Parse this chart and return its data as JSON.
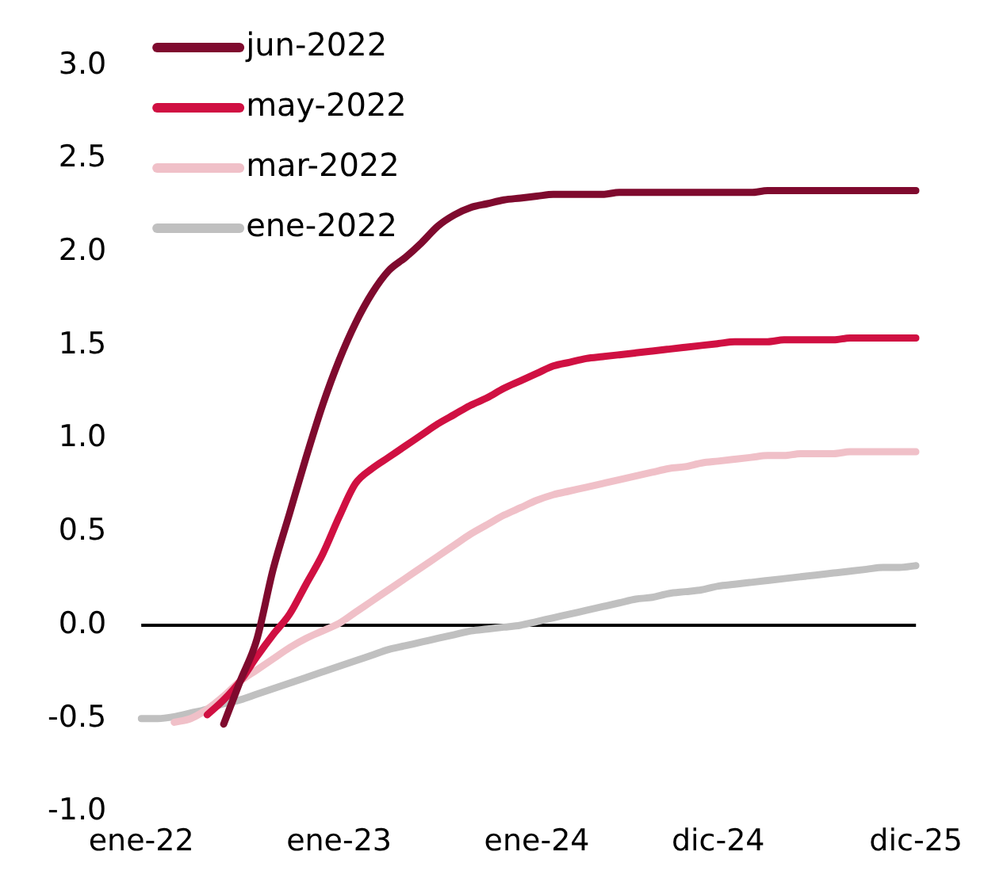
{
  "chart_data": {
    "type": "line",
    "categories": [
      "ene-22",
      null,
      null,
      null,
      null,
      null,
      null,
      null,
      null,
      null,
      null,
      null,
      "ene-23",
      null,
      null,
      null,
      null,
      null,
      null,
      null,
      null,
      null,
      null,
      null,
      "ene-24",
      null,
      null,
      null,
      null,
      null,
      null,
      null,
      null,
      null,
      null,
      "dic-24",
      null,
      null,
      null,
      null,
      null,
      null,
      null,
      null,
      null,
      null,
      null,
      "dic-25"
    ],
    "series": [
      {
        "name": "jun-2022",
        "color": "#7f0a2e",
        "values": [
          null,
          null,
          null,
          null,
          null,
          -0.53,
          -0.3,
          -0.08,
          0.3,
          0.6,
          0.9,
          1.18,
          1.42,
          1.62,
          1.78,
          1.9,
          1.97,
          2.05,
          2.14,
          2.2,
          2.24,
          2.26,
          2.28,
          2.29,
          2.3,
          2.31,
          2.31,
          2.31,
          2.31,
          2.32,
          2.32,
          2.32,
          2.32,
          2.32,
          2.32,
          2.32,
          2.32,
          2.32,
          2.33,
          2.33,
          2.33,
          2.33,
          2.33,
          2.33,
          2.33,
          2.33,
          2.33,
          2.33
        ]
      },
      {
        "name": "may-2022",
        "color": "#d01042",
        "values": [
          null,
          null,
          null,
          null,
          -0.48,
          -0.4,
          -0.3,
          -0.17,
          -0.05,
          0.06,
          0.22,
          0.38,
          0.58,
          0.76,
          0.84,
          0.9,
          0.96,
          1.02,
          1.08,
          1.13,
          1.18,
          1.22,
          1.27,
          1.31,
          1.35,
          1.39,
          1.41,
          1.43,
          1.44,
          1.45,
          1.46,
          1.47,
          1.48,
          1.49,
          1.5,
          1.51,
          1.52,
          1.52,
          1.52,
          1.53,
          1.53,
          1.53,
          1.53,
          1.54,
          1.54,
          1.54,
          1.54,
          1.54
        ]
      },
      {
        "name": "mar-2022",
        "color": "#f0c0c8",
        "values": [
          null,
          null,
          -0.52,
          -0.5,
          -0.45,
          -0.38,
          -0.3,
          -0.24,
          -0.18,
          -0.12,
          -0.07,
          -0.03,
          0.01,
          0.07,
          0.13,
          0.19,
          0.25,
          0.31,
          0.37,
          0.43,
          0.49,
          0.54,
          0.59,
          0.63,
          0.67,
          0.7,
          0.72,
          0.74,
          0.76,
          0.78,
          0.8,
          0.82,
          0.84,
          0.85,
          0.87,
          0.88,
          0.89,
          0.9,
          0.91,
          0.91,
          0.92,
          0.92,
          0.92,
          0.93,
          0.93,
          0.93,
          0.93,
          0.93
        ]
      },
      {
        "name": "ene-2022",
        "color": "#c0c0c0",
        "values": [
          -0.5,
          -0.5,
          -0.49,
          -0.47,
          -0.45,
          -0.42,
          -0.4,
          -0.37,
          -0.34,
          -0.31,
          -0.28,
          -0.25,
          -0.22,
          -0.19,
          -0.16,
          -0.13,
          -0.11,
          -0.09,
          -0.07,
          -0.05,
          -0.03,
          -0.02,
          -0.01,
          0.0,
          0.02,
          0.04,
          0.06,
          0.08,
          0.1,
          0.12,
          0.14,
          0.15,
          0.17,
          0.18,
          0.19,
          0.21,
          0.22,
          0.23,
          0.24,
          0.25,
          0.26,
          0.27,
          0.28,
          0.29,
          0.3,
          0.31,
          0.31,
          0.32
        ]
      }
    ],
    "ylim": [
      -1,
      3
    ],
    "yticks": [
      {
        "value": -1,
        "label": "-1.0"
      },
      {
        "value": -0.5,
        "label": "-0.5"
      },
      {
        "value": 0,
        "label": "0.0"
      },
      {
        "value": 0.5,
        "label": "0.5"
      },
      {
        "value": 1,
        "label": "1.0"
      },
      {
        "value": 1.5,
        "label": "1.5"
      },
      {
        "value": 2,
        "label": "2.0"
      },
      {
        "value": 2.5,
        "label": "2.5"
      },
      {
        "value": 3,
        "label": "3.0"
      }
    ],
    "ref_lines": [
      {
        "axis": "y",
        "value": 0,
        "color": "#000000"
      }
    ],
    "grid": false,
    "legend": "top left",
    "marker": "none",
    "line_style": "solid"
  }
}
